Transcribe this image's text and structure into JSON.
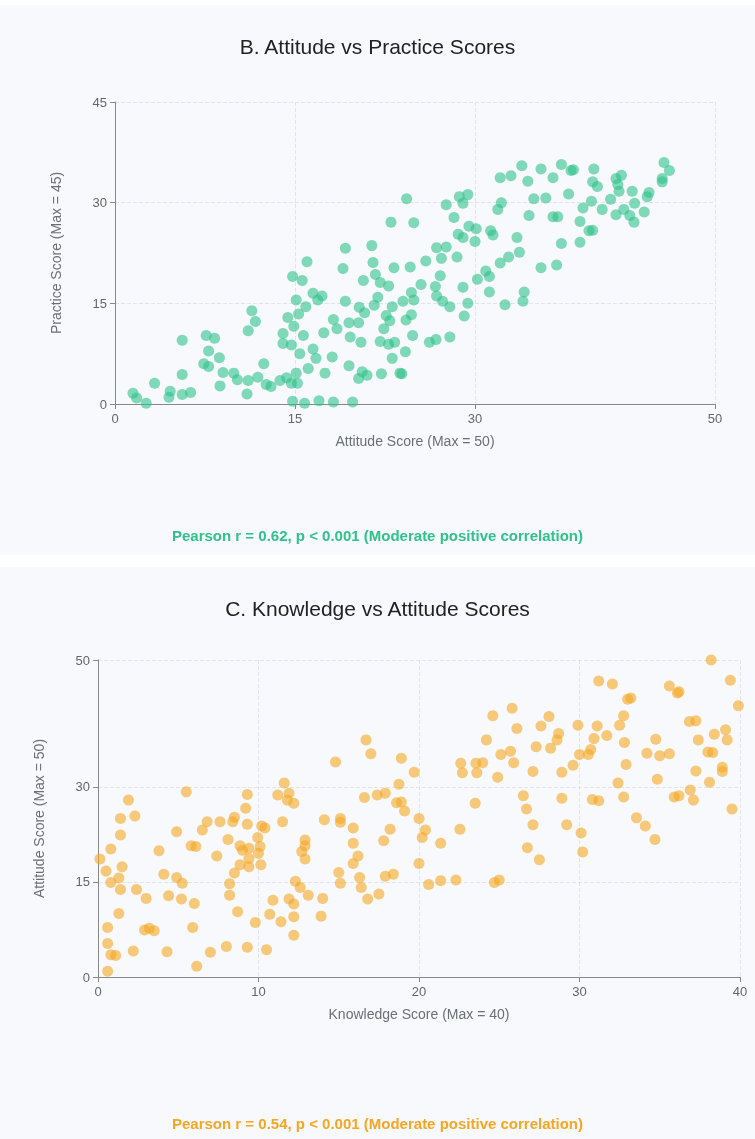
{
  "chart_data": [
    {
      "type": "scatter",
      "title": "B. Attitude vs Practice Scores",
      "xlabel": "Attitude Score (Max = 50)",
      "ylabel": "Practice Score (Max = 45)",
      "color": "#2fc28a",
      "marker": "circle",
      "grid": true,
      "xlim": [
        0,
        50
      ],
      "ylim": [
        0,
        45
      ],
      "xticks": [
        0,
        15,
        30,
        50
      ],
      "yticks": [
        0,
        15,
        30,
        45
      ],
      "annotations": [
        "Pearson r = 0.62, p < 0.001 (Moderate positive correlation)"
      ],
      "x": [
        1.5,
        1.8,
        2.6,
        3.3,
        4.6,
        4.5,
        5.6,
        6.3,
        5.6,
        5.6,
        7.6,
        8.3,
        7.8,
        7.4,
        7.8,
        8.7,
        9.0,
        8.75,
        9.9,
        10.2,
        11.0,
        11.1,
        11.1,
        11.4,
        11.7,
        11.9,
        12.4,
        12.6,
        13.0,
        13.75,
        14.3,
        14.7,
        15.2,
        15.1,
        16.1,
        14.8,
        15.8,
        17.0,
        18.2,
        19.8,
        14.0,
        14.0,
        14.7,
        15.4,
        16.5,
        16.75,
        15.7,
        14.9,
        14.4,
        15.3,
        15.9,
        15.1,
        14.8,
        15.6,
        16.0,
        16.5,
        16.9,
        17.25,
        17.4,
        17.5,
        18.1,
        18.2,
        18.5,
        19.2,
        19.0,
        19.2,
        19.5,
        19.6,
        19.5,
        20.3,
        20.6,
        21.0,
        20.5,
        20.3,
        20.35,
        20.8,
        20.7,
        21.4,
        21.5,
        21.7,
        22.1,
        21.9,
        21.6,
        22.4,
        22.1,
        22.8,
        23.3,
        23.1,
        22.2,
        23.75,
        23.0,
        24.3,
        23.25,
        22.8,
        23.1,
        22.6,
        22.9,
        24.0,
        24.25,
        24.2,
        24.9,
        24.6,
        24.7,
        24.9,
        24.7,
        24.8,
        23.9,
        25.9,
        25.5,
        26.7,
        26.8,
        27.3,
        27.9,
        27.1,
        26.8,
        27.6,
        27.2,
        26.2,
        26.75,
        27.9,
        27.6,
        28.25,
        28.7,
        29.4,
        29.0,
        28.6,
        29.0,
        29.5,
        30.1,
        30.0,
        28.5,
        29.0,
        29.4,
        29.1,
        30.2,
        30.9,
        31.2,
        31.2,
        32.1,
        32.8,
        33.7,
        33.5,
        32.5,
        34.1,
        34.0,
        31.3,
        31.5,
        31.9,
        32.2,
        32.1,
        33.0,
        33.9,
        34.4,
        34.9,
        34.5,
        35.5,
        35.9,
        36.5,
        36.5,
        36.9,
        37.2,
        38.0,
        38.2,
        37.8,
        35.5,
        36.8,
        37.2,
        38.75,
        38.75,
        39.0,
        39.5,
        39.8,
        39.7,
        39.9,
        39.8,
        40.2,
        40.6,
        41.3,
        41.75,
        42.2,
        41.9,
        42.0,
        41.75,
        42.4,
        42.9,
        43.25,
        43.1,
        43.3,
        44.1,
        44.35,
        44.5,
        45.6,
        45.6,
        45.75,
        46.2
      ],
      "values": [
        1.6,
        0.9,
        0.1,
        3.1,
        1.9,
        1.0,
        1.4,
        1.7,
        4.4,
        9.5,
        10.2,
        9.8,
        7.9,
        6.0,
        5.6,
        6.9,
        4.7,
        2.7,
        4.6,
        3.6,
        1.5,
        3.5,
        10.9,
        13.9,
        12.3,
        4.0,
        6.0,
        2.9,
        2.6,
        3.5,
        3.9,
        3.1,
        3.1,
        4.6,
        5.3,
        0.4,
        0.1,
        0.5,
        0.3,
        0.3,
        10.5,
        9.0,
        8.8,
        7.5,
        8.2,
        6.8,
        10.2,
        11.6,
        12.9,
        13.4,
        14.5,
        15.5,
        19.0,
        18.4,
        21.2,
        16.5,
        15.5,
        16.1,
        10.6,
        4.6,
        7.0,
        12.6,
        11.2,
        23.2,
        20.2,
        15.3,
        12.1,
        10.0,
        5.7,
        3.8,
        4.8,
        4.3,
        9.2,
        12.1,
        14.4,
        13.6,
        18.4,
        23.6,
        21.1,
        19.3,
        18.1,
        15.9,
        14.7,
        11.2,
        9.3,
        8.9,
        9.2,
        6.8,
        4.5,
        4.6,
        27.1,
        30.6,
        20.3,
        17.6,
        14.5,
        13.2,
        12.4,
        15.3,
        12.5,
        7.8,
        27.0,
        20.4,
        16.6,
        15.5,
        13.3,
        10.2,
        4.5,
        21.3,
        17.8,
        17.5,
        16.1,
        15.3,
        14.5,
        19.1,
        23.3,
        23.4,
        21.7,
        9.2,
        9.6,
        10.0,
        29.7,
        27.8,
        30.9,
        31.2,
        29.9,
        25.3,
        24.8,
        26.5,
        26.1,
        24.2,
        21.9,
        17.4,
        15.0,
        13.1,
        18.6,
        19.8,
        19.0,
        16.7,
        21.0,
        21.9,
        22.6,
        24.8,
        14.8,
        16.7,
        15.3,
        25.8,
        25.2,
        29.0,
        30.0,
        33.7,
        34.0,
        35.5,
        33.2,
        30.6,
        28.1,
        35.0,
        30.7,
        33.7,
        27.9,
        27.9,
        35.7,
        34.8,
        34.9,
        31.3,
        20.3,
        20.7,
        23.9,
        24.1,
        27.2,
        29.2,
        25.8,
        25.9,
        30.2,
        35.0,
        33.1,
        32.4,
        29.0,
        30.5,
        33.6,
        34.1,
        32.7,
        31.7,
        28.2,
        29.0,
        28.1,
        27.1,
        31.7,
        29.9,
        28.6,
        30.9,
        31.5,
        33.6,
        33.1,
        36.0,
        34.8
      ]
    },
    {
      "type": "scatter",
      "title": "C. Knowledge vs Attitude Scores",
      "xlabel": "Knowledge Score (Max = 40)",
      "ylabel": "Attitude Score (Max = 50)",
      "color": "#f5a623",
      "marker": "circle",
      "grid": true,
      "xlim": [
        0,
        40
      ],
      "ylim": [
        0,
        50
      ],
      "xticks": [
        0,
        10,
        20,
        30,
        40
      ],
      "yticks": [
        0,
        15,
        30,
        50
      ],
      "annotations": [
        "Pearson r = 0.54, p < 0.001 (Moderate positive correlation)"
      ],
      "x": [
        0.12,
        0.5,
        0.8,
        1.3,
        1.4,
        1.5,
        0.8,
        1.4,
        1.4,
        1.9,
        2.3,
        0.6,
        0.6,
        0.8,
        1.1,
        0.6,
        1.3,
        2.2,
        2.4,
        3.0,
        2.9,
        3.2,
        3.5,
        3.8,
        4.1,
        4.4,
        4.3,
        4.9,
        4.9,
        5.25,
        5.2,
        5.5,
        6.0,
        5.9,
        6.15,
        5.8,
        6.1,
        6.5,
        6.8,
        7.0,
        7.4,
        7.6,
        8.0,
        8.1,
        8.2,
        8.2,
        8.5,
        8.4,
        8.5,
        8.7,
        8.85,
        9.0,
        8.85,
        9.2,
        9.3,
        9.3,
        9.3,
        9.4,
        9.4,
        9.4,
        9.8,
        9.95,
        10.0,
        10.1,
        10.2,
        10.15,
        10.4,
        10.5,
        10.7,
        10.9,
        11.4,
        11.5,
        11.2,
        11.6,
        11.9,
        11.8,
        12.2,
        11.9,
        12.3,
        12.2,
        12.2,
        12.2,
        12.6,
        12.9,
        12.9,
        12.7,
        12.9,
        13.1,
        14.0,
        13.9,
        14.1,
        14.8,
        15.1,
        15.1,
        15.0,
        15.1,
        15.9,
        15.9,
        16.2,
        15.9,
        16.3,
        16.4,
        16.8,
        17.5,
        17.0,
        16.6,
        17.4,
        17.9,
        17.8,
        18.2,
        17.9,
        18.4,
        18.6,
        18.9,
        19.1,
        18.75,
        18.9,
        19.7,
        20.0,
        20.2,
        20.0,
        16.7,
        20.4,
        20.6,
        21.35,
        21.35,
        22.3,
        22.55,
        22.6,
        22.7,
        23.55,
        23.6,
        23.97,
        23.5,
        24.2,
        24.6,
        24.9,
        25.1,
        24.7,
        25.0,
        25.7,
        25.8,
        26.1,
        25.9,
        26.5,
        26.7,
        27.1,
        26.75,
        27.5,
        27.1,
        27.3,
        27.6,
        28.1,
        28.2,
        28.6,
        28.7,
        28.9,
        28.9,
        29.2,
        29.6,
        29.9,
        30.0,
        30.1,
        30.2,
        30.55,
        30.7,
        30.9,
        30.8,
        31.2,
        31.1,
        31.2,
        31.7,
        32.05,
        32.4,
        32.5,
        32.75,
        32.8,
        32.9,
        32.75,
        33.0,
        33.2,
        33.55,
        34.1,
        34.7,
        34.2,
        34.75,
        35.0,
        35.6,
        34.85,
        35.6,
        36.1,
        36.2,
        35.9,
        36.2,
        36.9,
        37.1,
        37.25,
        37.4,
        36.85,
        37.25,
        38.1,
        38.0,
        38.3,
        38.4,
        38.9,
        38.9,
        39.1,
        39.2,
        38.2,
        39.4,
        39.9,
        39.5
      ],
      "values": [
        18.6,
        16.7,
        14.9,
        15.6,
        13.8,
        17.4,
        20.2,
        22.4,
        25.0,
        27.9,
        25.4,
        7.8,
        5.3,
        3.5,
        3.4,
        0.9,
        10.0,
        4.1,
        13.8,
        12.4,
        7.4,
        7.7,
        7.3,
        19.9,
        16.2,
        12.8,
        4.0,
        22.9,
        15.7,
        14.8,
        12.3,
        29.2,
        11.6,
        7.8,
        1.7,
        20.7,
        20.6,
        23.2,
        24.5,
        3.9,
        19.1,
        24.5,
        4.8,
        21.7,
        14.7,
        12.9,
        16.4,
        24.5,
        25.2,
        10.3,
        20.7,
        20.0,
        17.7,
        26.6,
        28.8,
        24.1,
        4.7,
        20.3,
        18.7,
        17.4,
        8.6,
        22.0,
        19.5,
        20.6,
        23.8,
        17.7,
        23.5,
        4.3,
        9.9,
        12.1,
        8.7,
        24.5,
        28.7,
        30.6,
        29.0,
        27.9,
        27.4,
        12.3,
        15.1,
        11.5,
        9.5,
        6.6,
        14.1,
        21.6,
        20.7,
        19.8,
        18.6,
        12.9,
        12.4,
        9.6,
        24.8,
        33.9,
        25.0,
        24.4,
        16.5,
        14.8,
        23.5,
        21.1,
        19.1,
        17.9,
        15.7,
        14.1,
        12.3,
        13.1,
        35.2,
        28.3,
        28.7,
        29.0,
        21.5,
        23.3,
        15.9,
        16.2,
        27.5,
        27.6,
        26.2,
        30.4,
        34.5,
        32.3,
        25.0,
        22.0,
        17.9,
        37.4,
        23.2,
        14.6,
        15.2,
        21.1,
        15.3,
        23.3,
        33.7,
        32.2,
        33.7,
        32.2,
        33.8,
        27.4,
        37.4,
        41.2,
        31.5,
        35.1,
        14.9,
        15.3,
        35.6,
        42.4,
        39.2,
        33.8,
        28.6,
        26.5,
        24.0,
        20.4,
        18.5,
        32.4,
        36.3,
        39.6,
        41.1,
        36.1,
        37.4,
        38.4,
        32.3,
        28.2,
        24.0,
        33.4,
        39.7,
        35.1,
        22.7,
        19.7,
        35.1,
        35.9,
        37.6,
        28.0,
        27.8,
        39.6,
        46.7,
        38.1,
        46.2,
        30.6,
        39.7,
        41.2,
        37.0,
        33.5,
        28.4,
        43.8,
        44.0,
        25.1,
        23.8,
        21.7,
        35.3,
        37.5,
        34.9,
        35.2,
        31.2,
        45.9,
        44.8,
        45.0,
        28.4,
        28.6,
        29.5,
        27.9,
        32.5,
        37.4,
        40.3,
        40.4,
        30.7,
        35.5,
        35.4,
        38.3,
        33.1,
        32.4,
        39.0,
        37.4,
        50.0,
        46.8,
        42.8,
        26.5
      ]
    }
  ]
}
